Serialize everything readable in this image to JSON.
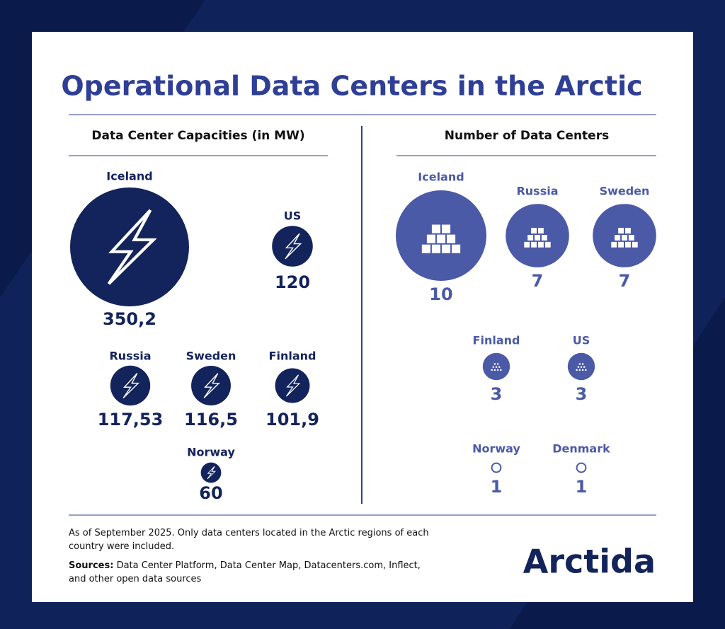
{
  "title": "Operational Data Centers in the Arctic",
  "chart_data": [
    {
      "type": "bubble",
      "title": "Data Center Capacities (in MW)",
      "categories": [
        "Iceland",
        "US",
        "Russia",
        "Sweden",
        "Finland",
        "Norway"
      ],
      "values": [
        350.2,
        120,
        117.53,
        116.5,
        101.9,
        60
      ],
      "value_labels": [
        "350,2",
        "120",
        "117,53",
        "116,5",
        "101,9",
        "60"
      ],
      "color": "#13235b"
    },
    {
      "type": "bubble",
      "title": "Number of Data Centers",
      "categories": [
        "Iceland",
        "Russia",
        "Sweden",
        "Finland",
        "US",
        "Norway",
        "Denmark"
      ],
      "values": [
        10,
        7,
        7,
        3,
        3,
        1,
        1
      ],
      "color": "#4b5aa6"
    }
  ],
  "note": "As of September 2025. Only data centers located in the Arctic regions of each country were included.",
  "sources_label": "Sources:",
  "sources": "Data Center Platform, Data Center Map, Datacenters.com, Inflect, and other open data sources",
  "logo": "Arctida"
}
